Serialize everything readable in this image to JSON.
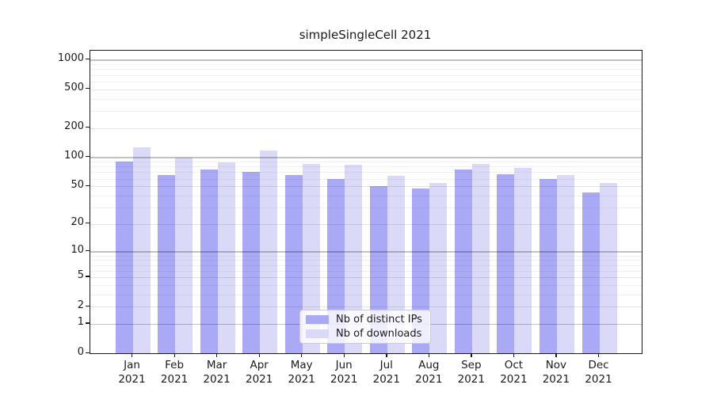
{
  "chart_data": {
    "type": "bar",
    "title": "simpleSingleCell 2021",
    "categories": [
      "Jan",
      "Feb",
      "Mar",
      "Apr",
      "May",
      "Jun",
      "Jul",
      "Aug",
      "Sep",
      "Oct",
      "Nov",
      "Dec"
    ],
    "year_label": "2021",
    "series": [
      {
        "name": "Nb of distinct IPs",
        "color": "#a9a9f5",
        "values": [
          90,
          65,
          74,
          70,
          66,
          60,
          50,
          47,
          75,
          67,
          59,
          43
        ]
      },
      {
        "name": "Nb of downloads",
        "color": "#dadaf8",
        "values": [
          126,
          99,
          89,
          118,
          86,
          83,
          64,
          54,
          86,
          78,
          66,
          54
        ]
      }
    ],
    "y_ticks": [
      0,
      1,
      2,
      5,
      10,
      20,
      50,
      100,
      200,
      500,
      1000
    ],
    "y_minor_ticks": [
      3,
      4,
      6,
      7,
      8,
      9,
      30,
      40,
      60,
      70,
      80,
      90,
      300,
      400,
      600,
      700,
      800,
      900
    ],
    "y_power_ticks": [
      1,
      10,
      100,
      1000
    ],
    "y_scale": "log1p",
    "ylim": [
      0,
      1200
    ],
    "grid": true,
    "legend_position": "lower center",
    "colors": {
      "axis": "#1a1a1a",
      "background": "#ffffff",
      "grid_power_over_white": "#c4c4c4",
      "grid_major_over_white": "#e4e4e4",
      "grid_minor_over_white": "#f1f1f1"
    }
  }
}
